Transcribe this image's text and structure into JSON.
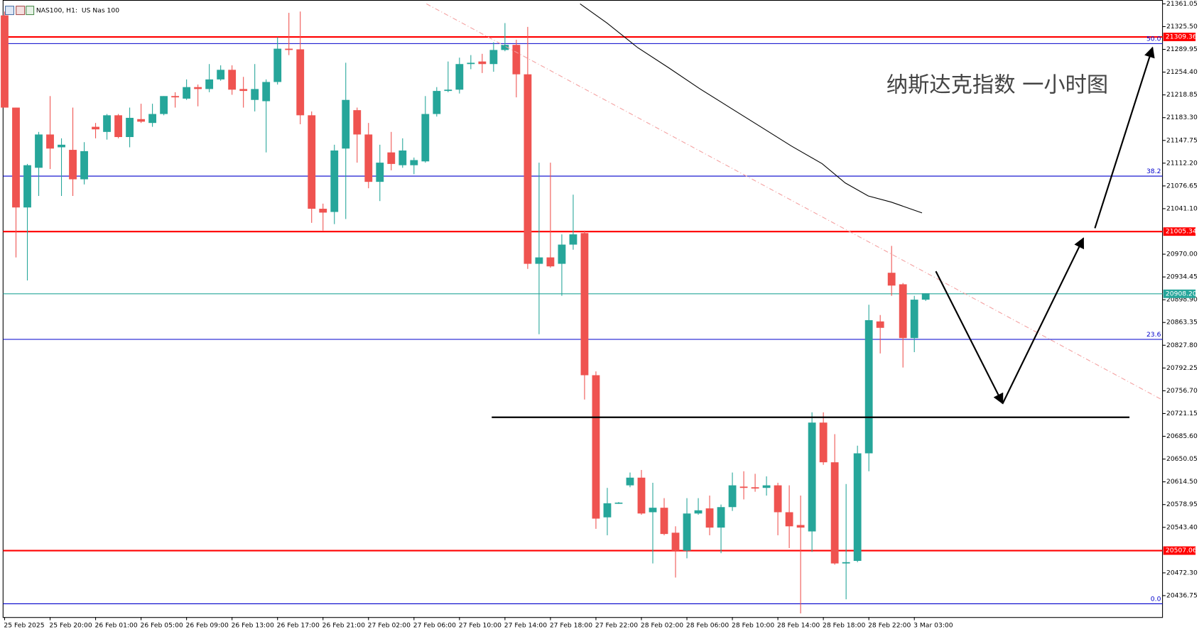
{
  "chart_data": {
    "type": "candlestick",
    "title": "NAS100, H1:  US Nas 100",
    "annotation": "纳斯达克指数 一小时图",
    "up_color": "#26a69a",
    "down_color": "#ef5350",
    "categories": [
      "25 Feb 2025",
      null,
      null,
      null,
      "25 Feb 20:00",
      null,
      null,
      null,
      "26 Feb 01:00",
      null,
      null,
      null,
      "26 Feb 05:00",
      null,
      null,
      null,
      "26 Feb 09:00",
      null,
      null,
      null,
      "26 Feb 13:00",
      null,
      null,
      null,
      "26 Feb 17:00",
      null,
      null,
      null,
      "26 Feb 21:00",
      null,
      null,
      null,
      "27 Feb 02:00",
      null,
      null,
      null,
      "27 Feb 06:00",
      null,
      null,
      null,
      "27 Feb 10:00",
      null,
      null,
      null,
      "27 Feb 14:00",
      null,
      null,
      null,
      "27 Feb 18:00",
      null,
      null,
      null,
      "27 Feb 22:00",
      null,
      null,
      null,
      "28 Feb 02:00",
      null,
      null,
      null,
      "28 Feb 06:00",
      null,
      null,
      null,
      "28 Feb 10:00",
      null,
      null,
      null,
      "28 Feb 14:00",
      null,
      null,
      null,
      "28 Feb 18:00",
      null,
      null,
      null,
      "28 Feb 22:00",
      null,
      null,
      null,
      "3 Mar 03:00",
      null
    ],
    "open": [
      21343,
      21199,
      21043,
      21105,
      21157,
      21137,
      21133,
      21087,
      21169,
      21161,
      21187,
      21153,
      21181,
      21175,
      21189,
      21217,
      21213,
      21231,
      21228,
      21243,
      21258,
      21228,
      21211,
      21209,
      21239,
      21291,
      21290,
      21187,
      21041,
      21036,
      21135,
      21195,
      21157,
      21083,
      21129,
      21109,
      21109,
      21115,
      21189,
      21225,
      21227,
      21267,
      21271,
      21267,
      21289,
      21297,
      21251,
      20955,
      20965,
      20955,
      20985,
      21003,
      20781,
      20559,
      20581,
      20609,
      20621,
      20567,
      20574,
      20535,
      20507,
      20565,
      20573,
      20543,
      20575,
      20607,
      20606,
      20605,
      20609,
      20567,
      20547,
      20537,
      20707,
      20645,
      20487,
      20491,
      20659,
      20865,
      20941,
      20923,
      20839,
      20899
    ],
    "high": [
      21349,
      21199,
      21111,
      21161,
      21217,
      21151,
      21199,
      21145,
      21175,
      21189,
      21189,
      21199,
      21205,
      21205,
      21217,
      21223,
      21243,
      21235,
      21267,
      21265,
      21265,
      21247,
      21267,
      21243,
      21309,
      21347,
      21349,
      21193,
      21049,
      21141,
      21269,
      21199,
      21175,
      21141,
      21161,
      21151,
      21121,
      21217,
      21231,
      21271,
      21277,
      21281,
      21283,
      21301,
      21331,
      21305,
      21325,
      21113,
      21113,
      21001,
      21063,
      21007,
      20787,
      20605,
      20583,
      20629,
      20633,
      20613,
      20589,
      20545,
      20589,
      20589,
      20593,
      20579,
      20629,
      20631,
      20627,
      20623,
      20613,
      20609,
      20593,
      20723,
      20723,
      20689,
      20611,
      20671,
      20891,
      20875,
      20983,
      20925,
      20905,
      20909
    ],
    "low": [
      21199,
      20965,
      20929,
      21061,
      21103,
      21061,
      21061,
      21079,
      21151,
      21149,
      21151,
      21137,
      21175,
      21169,
      21187,
      21199,
      21211,
      21201,
      21223,
      21241,
      21219,
      21199,
      21193,
      21129,
      21235,
      21281,
      21173,
      21019,
      21007,
      21017,
      21025,
      21113,
      21073,
      21053,
      21101,
      21105,
      21095,
      21113,
      21185,
      21223,
      21221,
      21259,
      21253,
      21255,
      21287,
      21215,
      20947,
      20845,
      20949,
      20905,
      20977,
      20743,
      20541,
      20531,
      20580,
      20606,
      20563,
      20487,
      20531,
      20465,
      20495,
      20563,
      20531,
      20503,
      20569,
      20587,
      20599,
      20593,
      20531,
      20511,
      20409,
      20505,
      20641,
      20485,
      20431,
      20489,
      20631,
      20815,
      20905,
      20793,
      20817,
      20897
    ],
    "close": [
      21199,
      21043,
      21109,
      21157,
      21135,
      21141,
      21087,
      21131,
      21165,
      21187,
      21153,
      21183,
      21177,
      21189,
      21217,
      21215,
      21231,
      21228,
      21243,
      21258,
      21227,
      21225,
      21228,
      21239,
      21291,
      21289,
      21187,
      21041,
      21035,
      21132,
      21211,
      21157,
      21083,
      21113,
      21111,
      21132,
      21117,
      21189,
      21225,
      21227,
      21267,
      21269,
      21267,
      21289,
      21297,
      21251,
      20955,
      20965,
      20951,
      20985,
      21001,
      20781,
      20557,
      20581,
      20582,
      20621,
      20565,
      20574,
      20533,
      20507,
      20565,
      20570,
      20543,
      20575,
      20609,
      20605,
      20604,
      20609,
      20567,
      20545,
      20543,
      20707,
      20645,
      20487,
      20489,
      20659,
      20867,
      20855,
      20921,
      20839,
      20899,
      20909
    ],
    "ylim": [
      20403.2,
      21367.05
    ],
    "yticks": [
      21361.05,
      {
        "value": 21325.5,
        "label": "21325.50"
      },
      21289.95,
      {
        "value": 21254.4,
        "label": "21254.40"
      },
      21218.85,
      {
        "value": 21183.3,
        "label": "21183.30"
      },
      21147.75,
      {
        "value": 21112.2,
        "label": "21112.20"
      },
      21076.65,
      {
        "value": 21041.1,
        "label": "21041.10"
      },
      {
        "value": 20970,
        "label": "20970.00"
      },
      20934.45,
      {
        "value": 20898.9,
        "label": "20898.90"
      },
      20863.35,
      {
        "value": 20827.8,
        "label": "20827.80"
      },
      20792.25,
      {
        "value": 20756.7,
        "label": "20756.70"
      },
      20721.15,
      {
        "value": 20685.6,
        "label": "20685.60"
      },
      20650.05,
      {
        "value": 20614.5,
        "label": "20614.50"
      },
      20578.95,
      {
        "value": 20543.4,
        "label": "20543.40"
      },
      {
        "value": 20472.3,
        "label": "20472.30"
      },
      20436.75
    ],
    "price_lines": [
      {
        "value": 21309.36,
        "color": "#ff0000"
      },
      {
        "value": 21005.34,
        "color": "#ff0000"
      },
      {
        "value": 20507.06,
        "color": "#ff0000"
      },
      {
        "value": 20908.2,
        "label": "20908.20",
        "color": "#26a69a"
      }
    ],
    "fibo_color": "#0000cc",
    "fibo_levels": [
      {
        "price": 21299,
        "level": "50.0"
      },
      {
        "price": 21092,
        "level": "38.2"
      },
      {
        "price": 20837,
        "level": "23.6"
      },
      {
        "price": 20424,
        "level": "0.0"
      }
    ]
  }
}
